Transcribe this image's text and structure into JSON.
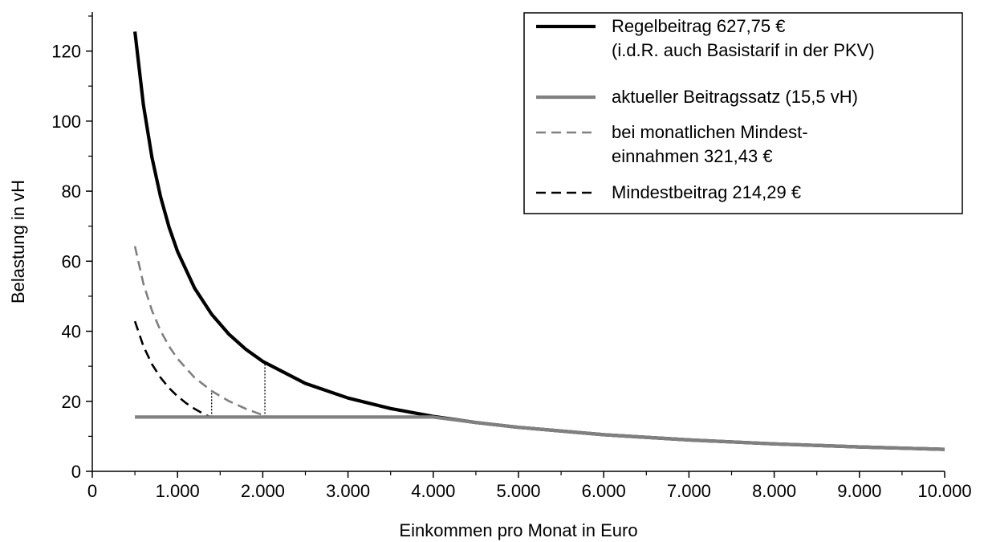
{
  "chart_data": {
    "type": "line",
    "xlabel": "Einkommen pro Monat in Euro",
    "ylabel": "Belastung in vH",
    "xlim": [
      0,
      10000
    ],
    "ylim": [
      0,
      130
    ],
    "x_ticks": [
      {
        "value": 0,
        "label": "0"
      },
      {
        "value": 1000,
        "label": "1.000"
      },
      {
        "value": 2000,
        "label": "2.000"
      },
      {
        "value": 3000,
        "label": "3.000"
      },
      {
        "value": 4000,
        "label": "4.000"
      },
      {
        "value": 5000,
        "label": "5.000"
      },
      {
        "value": 6000,
        "label": "6.000"
      },
      {
        "value": 7000,
        "label": "7.000"
      },
      {
        "value": 8000,
        "label": "8.000"
      },
      {
        "value": 9000,
        "label": "9.000"
      },
      {
        "value": 10000,
        "label": "10.000"
      }
    ],
    "y_ticks": [
      {
        "value": 0,
        "label": "0"
      },
      {
        "value": 20,
        "label": "20"
      },
      {
        "value": 40,
        "label": "40"
      },
      {
        "value": 60,
        "label": "60"
      },
      {
        "value": 80,
        "label": "80"
      },
      {
        "value": 100,
        "label": "100"
      },
      {
        "value": 120,
        "label": "120"
      }
    ],
    "grid": false,
    "legend_position": "top-right",
    "series": [
      {
        "name_lines": [
          "Regelbeitrag 627,75 €",
          "(i.d.R. auch Basistarif in der PKV)"
        ],
        "color": "#000000",
        "style": "solid",
        "x": [
          500,
          600,
          700,
          800,
          900,
          1000,
          1200,
          1400,
          1600,
          1800,
          2000,
          2500,
          3000,
          3500,
          4000,
          4500,
          5000,
          6000,
          7000,
          8000,
          9000,
          10000
        ],
        "y": [
          125.55,
          104.63,
          89.68,
          78.47,
          69.75,
          62.78,
          52.31,
          44.84,
          39.23,
          34.88,
          31.39,
          25.11,
          20.93,
          17.94,
          15.69,
          13.95,
          12.56,
          10.46,
          8.97,
          7.85,
          6.98,
          6.28
        ]
      },
      {
        "name_lines": [
          "aktueller Beitragssatz (15,5 vH)"
        ],
        "color": "#808080",
        "style": "solid",
        "x": [
          500,
          4000,
          4500,
          5000,
          6000,
          7000,
          8000,
          9000,
          10000
        ],
        "y": [
          15.5,
          15.5,
          13.95,
          12.56,
          10.46,
          8.97,
          7.85,
          6.98,
          6.28
        ]
      },
      {
        "name_lines": [
          "bei monatlichen Mindest-",
          "einnahmen 321,43 €"
        ],
        "color": "#808080",
        "style": "dashed",
        "x": [
          500,
          600,
          700,
          800,
          900,
          1000,
          1200,
          1400,
          1600,
          1800,
          2000,
          2050
        ],
        "y": [
          64.29,
          53.57,
          45.92,
          40.18,
          35.71,
          32.14,
          26.79,
          22.96,
          20.09,
          17.86,
          16.07,
          15.68
        ]
      },
      {
        "name_lines": [
          "Mindestbeitrag 214,29 €"
        ],
        "color": "#000000",
        "style": "dashed",
        "x": [
          500,
          600,
          700,
          800,
          900,
          1000,
          1100,
          1200,
          1300,
          1383
        ],
        "y": [
          42.86,
          35.71,
          30.61,
          26.79,
          23.81,
          21.43,
          19.48,
          17.86,
          16.48,
          15.5
        ]
      }
    ],
    "reference_lines": [
      {
        "x": 1400,
        "y_from": 15.5,
        "y_to": 22.96,
        "style": "dotted"
      },
      {
        "x": 2025,
        "y_from": 15.5,
        "y_to": 31.0,
        "style": "dotted"
      }
    ]
  }
}
